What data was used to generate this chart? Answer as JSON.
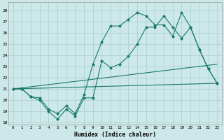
{
  "xlabel": "Humidex (Indice chaleur)",
  "xlim": [
    -0.5,
    23.5
  ],
  "ylim": [
    17.8,
    28.7
  ],
  "yticks": [
    18,
    19,
    20,
    21,
    22,
    23,
    24,
    25,
    26,
    27,
    28
  ],
  "xticks": [
    0,
    1,
    2,
    3,
    4,
    5,
    6,
    7,
    8,
    9,
    10,
    11,
    12,
    13,
    14,
    15,
    16,
    17,
    18,
    19,
    20,
    21,
    22,
    23
  ],
  "bg_color": "#cce8e8",
  "grid_color": "#aacece",
  "line_color": "#1a7a6a",
  "line1_x": [
    0,
    1,
    2,
    3,
    4,
    5,
    6,
    7,
    8,
    9,
    10,
    11,
    12,
    13,
    14,
    15,
    16,
    17,
    18,
    19,
    20,
    21,
    22,
    23
  ],
  "line1_y": [
    21,
    21,
    20.3,
    20,
    19,
    18.3,
    19.2,
    18.6,
    20.2,
    20.2,
    23.5,
    22.9,
    23.2,
    23.9,
    25.0,
    26.5,
    26.5,
    27.5,
    26.5,
    25.5,
    26.5,
    24.5,
    22.8,
    21.5
  ],
  "line2_x": [
    0,
    1,
    2,
    3,
    4,
    5,
    6,
    7,
    8,
    9,
    10,
    11,
    12,
    13,
    14,
    15,
    16,
    17,
    18,
    19,
    20,
    21,
    22,
    23
  ],
  "line2_y": [
    21,
    21,
    20.3,
    20.2,
    19.2,
    18.8,
    19.5,
    18.8,
    20.5,
    23.2,
    25.2,
    26.6,
    26.6,
    27.2,
    27.8,
    27.5,
    26.7,
    26.7,
    25.7,
    27.8,
    26.5,
    24.5,
    22.8,
    21.5
  ],
  "trend1_x": [
    0,
    23
  ],
  "trend1_y": [
    21.0,
    23.2
  ],
  "trend2_x": [
    0,
    23
  ],
  "trend2_y": [
    21.0,
    21.5
  ]
}
